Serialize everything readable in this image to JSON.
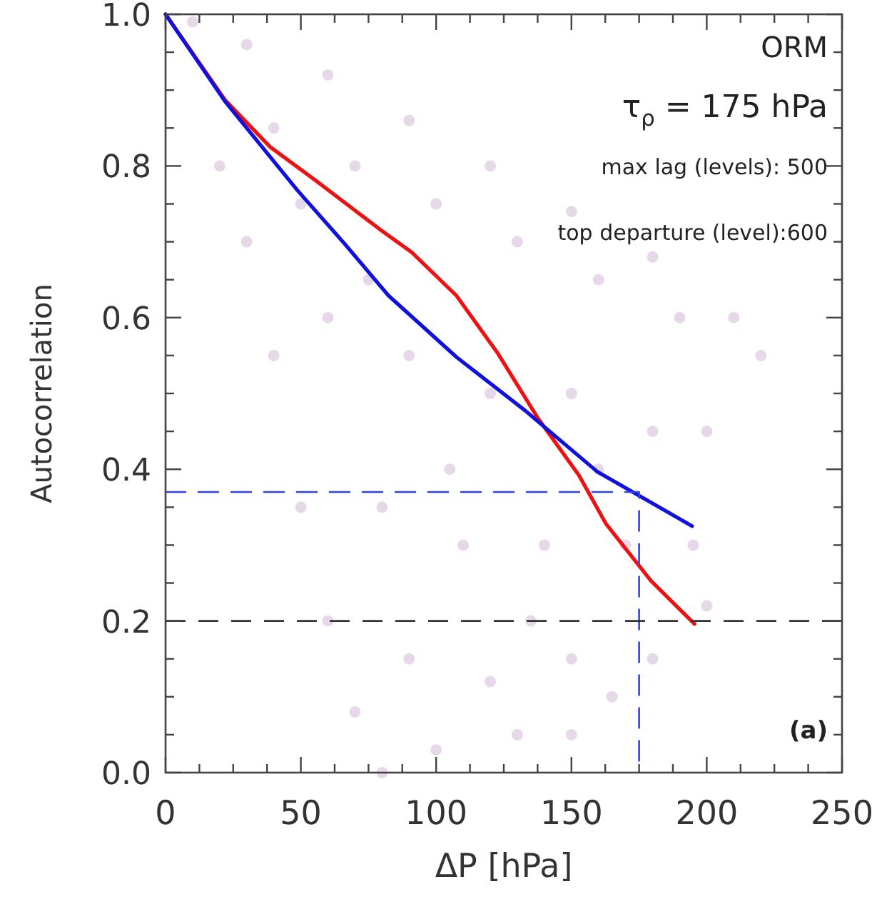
{
  "chart_data": {
    "type": "line",
    "xlabel": "ΔP [hPa]",
    "ylabel": "Autocorrelation",
    "xlim": [
      0,
      250
    ],
    "ylim": [
      0,
      1
    ],
    "xticks": [
      0,
      {
        "value": 12.5,
        "label": null
      },
      {
        "value": 25,
        "label": null
      },
      {
        "value": 37.5,
        "label": null
      },
      50,
      {
        "value": 62.5,
        "label": null
      },
      {
        "value": 75,
        "label": null
      },
      {
        "value": 87.5,
        "label": null
      },
      100,
      {
        "value": 112.5,
        "label": null
      },
      {
        "value": 125,
        "label": null
      },
      {
        "value": 137.5,
        "label": null
      },
      150,
      {
        "value": 162.5,
        "label": null
      },
      {
        "value": 175,
        "label": null
      },
      {
        "value": 187.5,
        "label": null
      },
      200,
      {
        "value": 212.5,
        "label": null
      },
      {
        "value": 225,
        "label": null
      },
      {
        "value": 237.5,
        "label": null
      },
      250
    ],
    "yticks": [
      {
        "value": 0,
        "label": "0.0"
      },
      {
        "value": 0.05,
        "label": null
      },
      {
        "value": 0.1,
        "label": null
      },
      {
        "value": 0.15,
        "label": null
      },
      0.2,
      {
        "value": 0.25,
        "label": null
      },
      {
        "value": 0.3,
        "label": null
      },
      {
        "value": 0.35,
        "label": null
      },
      0.4,
      {
        "value": 0.45,
        "label": null
      },
      {
        "value": 0.5,
        "label": null
      },
      {
        "value": 0.55,
        "label": null
      },
      0.6,
      {
        "value": 0.65,
        "label": null
      },
      {
        "value": 0.7,
        "label": null
      },
      {
        "value": 0.75,
        "label": null
      },
      0.8,
      {
        "value": 0.85,
        "label": null
      },
      {
        "value": 0.9,
        "label": null
      },
      {
        "value": 0.95,
        "label": null
      },
      {
        "value": 1,
        "label": "1.0"
      }
    ],
    "grid": false,
    "marker": "none",
    "line_style": "solid",
    "series": [
      {
        "type": "scatter",
        "marker": "circle",
        "color": "#e6d8e8",
        "x": [
          10,
          30,
          60,
          90,
          120,
          150,
          180,
          210,
          220,
          20,
          40,
          50,
          60,
          70,
          80,
          40,
          70,
          100,
          130,
          160,
          190,
          60,
          90,
          120,
          150,
          180,
          200,
          80,
          110,
          140,
          170,
          195,
          90,
          120,
          150,
          180,
          100,
          130,
          150,
          165,
          200,
          30,
          50,
          75,
          105,
          135,
          160
        ],
        "values": [
          0.99,
          0.96,
          0.92,
          0.86,
          0.8,
          0.74,
          0.68,
          0.6,
          0.55,
          0.8,
          0.55,
          0.35,
          0.2,
          0.08,
          0.0,
          0.85,
          0.8,
          0.75,
          0.7,
          0.65,
          0.6,
          0.6,
          0.55,
          0.5,
          0.5,
          0.45,
          0.45,
          0.35,
          0.3,
          0.3,
          0.3,
          0.3,
          0.15,
          0.12,
          0.15,
          0.15,
          0.03,
          0.05,
          0.05,
          0.1,
          0.22,
          0.7,
          0.75,
          0.65,
          0.4,
          0.2,
          0.4
        ]
      },
      {
        "color": "#ee1111",
        "x": [
          0,
          22,
          38.7,
          55.8,
          79,
          91,
          107.5,
          122.6,
          137.7,
          152.8,
          162.8,
          179.4,
          195.5
        ],
        "values": [
          1.0,
          0.887,
          0.825,
          0.78,
          0.717,
          0.686,
          0.629,
          0.554,
          0.467,
          0.392,
          0.328,
          0.253,
          0.196
        ]
      },
      {
        "color": "#1111dd",
        "x": [
          0,
          22,
          48.7,
          65.8,
          82.4,
          107.5,
          132.7,
          159.5,
          174.6,
          194.6
        ],
        "values": [
          1.0,
          0.885,
          0.768,
          0.699,
          0.629,
          0.548,
          0.478,
          0.397,
          0.366,
          0.325
        ]
      },
      {
        "color": "#3344dd",
        "line_style": "dashed",
        "x": [
          0,
          175,
          175
        ],
        "values": [
          0.37,
          0.37,
          0
        ]
      }
    ],
    "ref_lines": [
      {
        "axis": "y",
        "value": 0.2,
        "color": "#333333",
        "line_style": "dashed"
      }
    ],
    "annotations": [
      "ORM",
      "τ$_{ρ}$ = 175 hPa",
      "max lag (levels): 500",
      "top departure (level):600",
      "(a)"
    ]
  }
}
